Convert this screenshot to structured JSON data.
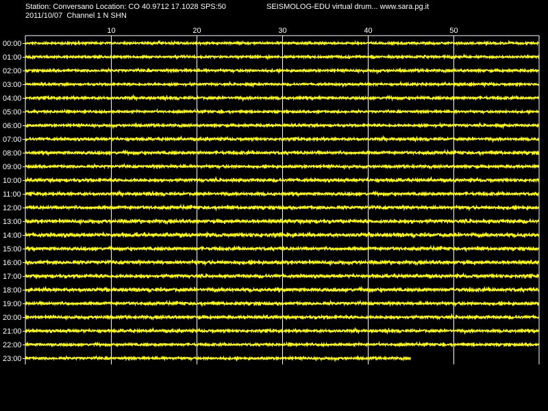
{
  "header": {
    "station_line": "Station: Conversano Location: CO 40.9712 17.1028 SPS:50",
    "date_line": "2011/10/07  Channel 1 N SHN",
    "app_line": "SEISMOLOG-EDU virtual drum... www.sara.pg.it"
  },
  "colors": {
    "background": "#000000",
    "trace": "#ffff00",
    "grid": "#ffffff",
    "text": "#ffffff"
  },
  "chart_data": {
    "type": "line",
    "title": "",
    "xlabel": "",
    "ylabel": "",
    "x_unit_note": "",
    "xlim": [
      0,
      60
    ],
    "x_ticks": [
      10,
      20,
      30,
      40,
      50
    ],
    "grid": true,
    "series": [
      {
        "label": "00:00",
        "start_min": 0,
        "end_min": 60,
        "amplitude": 0.6
      },
      {
        "label": "01:00",
        "start_min": 0,
        "end_min": 60,
        "amplitude": 0.6
      },
      {
        "label": "02:00",
        "start_min": 0,
        "end_min": 60,
        "amplitude": 0.65
      },
      {
        "label": "03:00",
        "start_min": 0,
        "end_min": 60,
        "amplitude": 0.6
      },
      {
        "label": "04:00",
        "start_min": 0,
        "end_min": 60,
        "amplitude": 0.7
      },
      {
        "label": "05:00",
        "start_min": 0,
        "end_min": 60,
        "amplitude": 0.6
      },
      {
        "label": "06:00",
        "start_min": 0,
        "end_min": 60,
        "amplitude": 0.65
      },
      {
        "label": "07:00",
        "start_min": 0,
        "end_min": 60,
        "amplitude": 0.7
      },
      {
        "label": "08:00",
        "start_min": 0,
        "end_min": 60,
        "amplitude": 0.75
      },
      {
        "label": "09:00",
        "start_min": 0,
        "end_min": 60,
        "amplitude": 0.7
      },
      {
        "label": "10:00",
        "start_min": 0,
        "end_min": 60,
        "amplitude": 0.75
      },
      {
        "label": "11:00",
        "start_min": 0,
        "end_min": 60,
        "amplitude": 0.75
      },
      {
        "label": "12:00",
        "start_min": 0,
        "end_min": 60,
        "amplitude": 0.8
      },
      {
        "label": "13:00",
        "start_min": 0,
        "end_min": 60,
        "amplitude": 0.85
      },
      {
        "label": "14:00",
        "start_min": 0,
        "end_min": 60,
        "amplitude": 0.9
      },
      {
        "label": "15:00",
        "start_min": 0,
        "end_min": 60,
        "amplitude": 0.8
      },
      {
        "label": "16:00",
        "start_min": 0,
        "end_min": 60,
        "amplitude": 0.85
      },
      {
        "label": "17:00",
        "start_min": 0,
        "end_min": 60,
        "amplitude": 0.8
      },
      {
        "label": "18:00",
        "start_min": 0,
        "end_min": 60,
        "amplitude": 0.85
      },
      {
        "label": "19:00",
        "start_min": 0,
        "end_min": 60,
        "amplitude": 0.75
      },
      {
        "label": "20:00",
        "start_min": 0,
        "end_min": 60,
        "amplitude": 0.75
      },
      {
        "label": "21:00",
        "start_min": 0,
        "end_min": 60,
        "amplitude": 0.7
      },
      {
        "label": "22:00",
        "start_min": 0,
        "end_min": 60,
        "amplitude": 0.65
      },
      {
        "label": "23:00",
        "start_min": 0,
        "end_min": 45,
        "amplitude": 0.65
      }
    ]
  }
}
